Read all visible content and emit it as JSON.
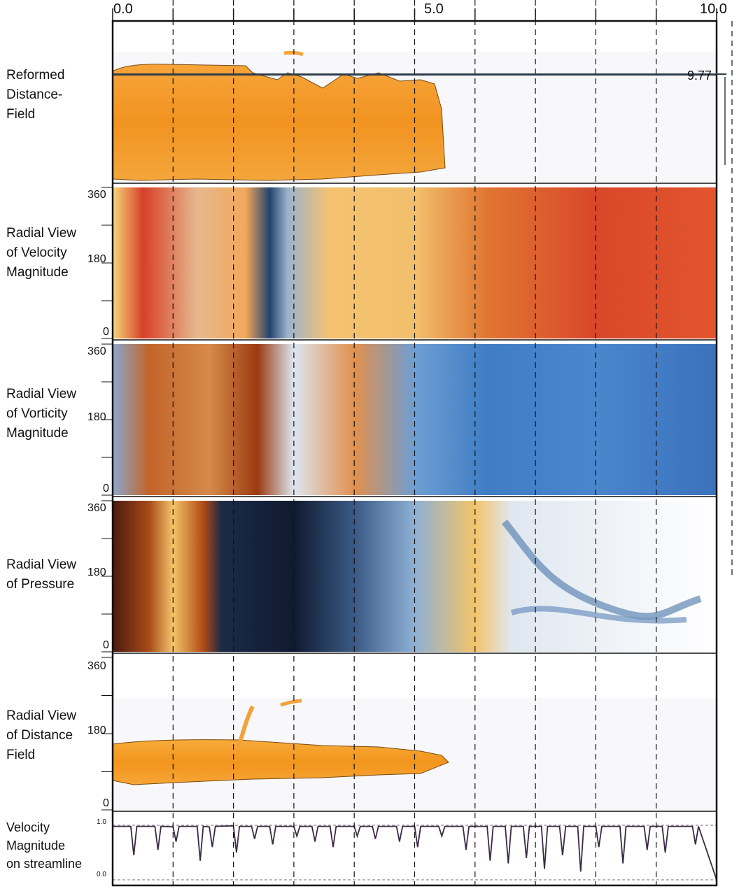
{
  "x_axis": {
    "ticks": [
      "0.0",
      "5.0",
      "10.0"
    ],
    "range": [
      0,
      10
    ],
    "dashed_guides": [
      1,
      2,
      3,
      4,
      5,
      6,
      7,
      8,
      9
    ]
  },
  "rows": [
    {
      "id": "distance-field-reformed",
      "label": "Reformed\nDistance-\nField",
      "yticks": []
    },
    {
      "id": "velocity",
      "label": "Radial View\nof Velocity\nMagnitude",
      "yticks": [
        "360",
        "180",
        "0"
      ]
    },
    {
      "id": "vorticity",
      "label": "Radial View\nof Vorticity\nMagnitude",
      "yticks": [
        "360",
        "180",
        "0"
      ]
    },
    {
      "id": "pressure",
      "label": "Radial View\nof Pressure",
      "yticks": [
        "360",
        "180",
        "0"
      ]
    },
    {
      "id": "distance-field-radial",
      "label": "Radial View\nof Distance\nField",
      "yticks": [
        "360",
        "180",
        "0"
      ]
    },
    {
      "id": "streamline",
      "label": "Velocity\nMagnitude\non streamline",
      "yticks": [
        "1.0",
        "0.0"
      ]
    }
  ],
  "marker": {
    "value_label": "9.77",
    "x": 9.77
  },
  "colors": {
    "orange": "#f39a1e",
    "red": "#c9341c",
    "navy": "#1b2a47",
    "blue": "#3f7dc4",
    "line": "#3b2a44"
  },
  "chart_data": {
    "type": "line",
    "title": "",
    "xlabel": "",
    "ylabel": "",
    "xlim": [
      0,
      10
    ],
    "ylim": [
      0,
      1
    ],
    "x": [
      0,
      0.3,
      0.35,
      0.4,
      0.7,
      0.75,
      0.8,
      1.0,
      1.05,
      1.1,
      1.4,
      1.45,
      1.5,
      1.6,
      1.65,
      1.7,
      2.0,
      2.05,
      2.1,
      2.3,
      2.35,
      2.4,
      2.6,
      2.65,
      2.7,
      3.0,
      3.05,
      3.1,
      3.3,
      3.35,
      3.4,
      3.6,
      3.65,
      3.7,
      4.0,
      4.05,
      4.1,
      4.3,
      4.35,
      4.4,
      4.7,
      4.75,
      4.8,
      5.0,
      5.05,
      5.1,
      5.4,
      5.45,
      5.5,
      5.8,
      5.85,
      5.9,
      6.2,
      6.25,
      6.3,
      6.5,
      6.55,
      6.6,
      6.8,
      6.85,
      6.9,
      7.1,
      7.15,
      7.2,
      7.4,
      7.45,
      7.5,
      7.7,
      7.75,
      7.8,
      8.0,
      8.05,
      8.1,
      8.4,
      8.45,
      8.5,
      8.8,
      8.85,
      8.9,
      9.1,
      9.15,
      9.2,
      9.6,
      9.65,
      9.7,
      10.0
    ],
    "values": [
      0.98,
      0.98,
      0.45,
      0.98,
      0.98,
      0.55,
      0.98,
      0.97,
      0.7,
      0.98,
      0.98,
      0.35,
      0.98,
      0.97,
      0.6,
      0.98,
      0.99,
      0.5,
      0.98,
      0.98,
      0.75,
      0.98,
      0.98,
      0.65,
      0.98,
      0.98,
      0.8,
      0.98,
      0.98,
      0.7,
      0.98,
      0.98,
      0.6,
      0.98,
      0.98,
      0.8,
      0.98,
      0.98,
      0.75,
      0.98,
      0.98,
      0.7,
      0.98,
      0.98,
      0.6,
      0.98,
      0.98,
      0.8,
      0.98,
      0.98,
      0.55,
      0.98,
      0.98,
      0.35,
      0.98,
      0.98,
      0.3,
      0.98,
      0.98,
      0.4,
      0.98,
      0.98,
      0.2,
      0.98,
      0.98,
      0.45,
      0.98,
      0.98,
      0.15,
      0.98,
      0.98,
      0.6,
      0.98,
      0.98,
      0.3,
      0.98,
      0.98,
      0.55,
      0.98,
      0.98,
      0.5,
      0.98,
      0.98,
      0.65,
      0.98,
      0.0
    ]
  }
}
